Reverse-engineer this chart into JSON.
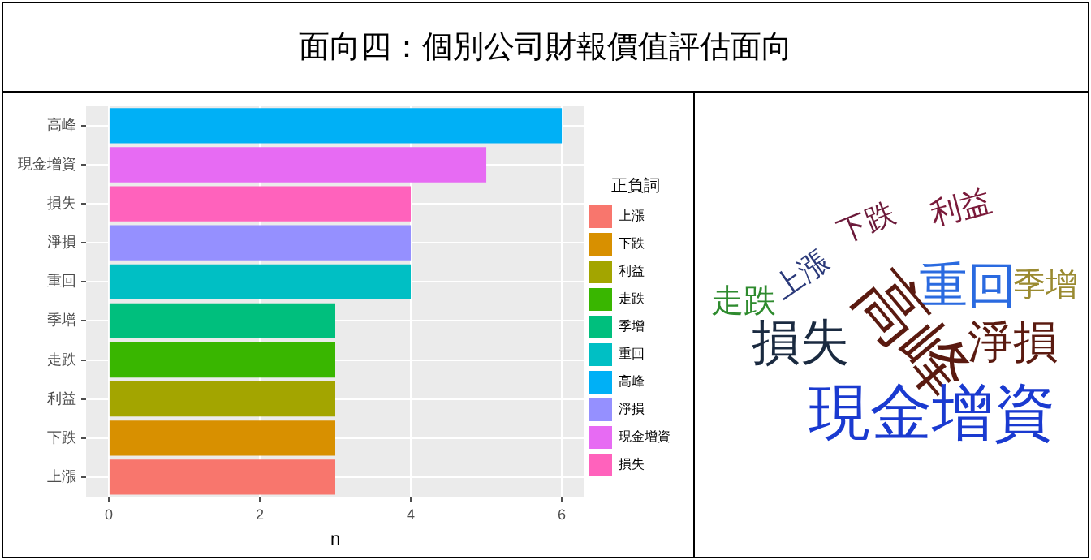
{
  "chart_data": [
    {
      "type": "bar",
      "title": "面向四：個別公司財報價值評估面向",
      "orientation": "horizontal",
      "stacked": true,
      "xlabel": "n",
      "legend_title": "正負詞",
      "legend": "right",
      "grid": true,
      "categories": [
        "高峰",
        "現金增資",
        "損失",
        "淨損",
        "重回",
        "季增",
        "走跌",
        "利益",
        "下跌",
        "上漲"
      ],
      "series": [
        {
          "name": "上漲",
          "color": "#f8766d",
          "values": [
            null,
            null,
            null,
            null,
            null,
            null,
            null,
            null,
            null,
            3
          ]
        },
        {
          "name": "下跌",
          "color": "#d89000",
          "values": [
            null,
            null,
            null,
            null,
            null,
            null,
            null,
            null,
            3,
            null
          ]
        },
        {
          "name": "利益",
          "color": "#a3a500",
          "values": [
            null,
            null,
            null,
            null,
            null,
            null,
            null,
            3,
            null,
            null
          ]
        },
        {
          "name": "走跌",
          "color": "#39b600",
          "values": [
            null,
            null,
            null,
            null,
            null,
            null,
            3,
            null,
            null,
            null
          ]
        },
        {
          "name": "季增",
          "color": "#00bf7d",
          "values": [
            null,
            null,
            null,
            null,
            null,
            3,
            null,
            null,
            null,
            null
          ]
        },
        {
          "name": "重回",
          "color": "#00bfc4",
          "values": [
            null,
            null,
            null,
            null,
            4,
            null,
            null,
            null,
            null,
            null
          ]
        },
        {
          "name": "高峰",
          "color": "#00b0f6",
          "values": [
            6,
            null,
            null,
            null,
            null,
            null,
            null,
            null,
            null,
            null
          ]
        },
        {
          "name": "淨損",
          "color": "#9590ff",
          "values": [
            null,
            null,
            null,
            4,
            null,
            null,
            null,
            null,
            null,
            null
          ]
        },
        {
          "name": "現金增資",
          "color": "#e76bf3",
          "values": [
            null,
            5,
            null,
            null,
            null,
            null,
            null,
            null,
            null,
            null
          ]
        },
        {
          "name": "損失",
          "color": "#ff62bc",
          "values": [
            null,
            null,
            4,
            null,
            null,
            null,
            null,
            null,
            null,
            null
          ]
        }
      ],
      "xlim": [
        -0.3,
        6.3
      ],
      "xticks": [
        0,
        2,
        4,
        6
      ]
    },
    {
      "type": "other",
      "annotations": [
        "走跌",
        "上漲",
        "下跌",
        "利益",
        "重回",
        "季增",
        "損失",
        "高峰",
        "淨損",
        "現金增資"
      ],
      "colors": [
        "#2e8b2e",
        "#2b3a7a",
        "#6b1a3a",
        "#7a1a3a",
        "#2a6ae0",
        "#9a8a30",
        "#1a2a40",
        "#5a1a10",
        "#5a1a10",
        "#1a3ad0"
      ]
    }
  ]
}
